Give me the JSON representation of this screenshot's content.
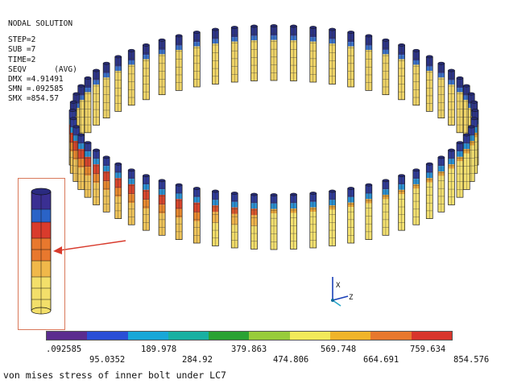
{
  "info": {
    "title": "NODAL SOLUTION",
    "step": "STEP=2",
    "sub": "SUB =7",
    "time": "TIME=2",
    "seqv": "SEQV      (AVG)",
    "dmx": "DMX =4.91491",
    "smn": "SMN =.092585",
    "smx": "SMX =854.57"
  },
  "legend": {
    "colors": [
      "#5b2c8f",
      "#2a4fd6",
      "#18a7d8",
      "#19b0a2",
      "#2aa233",
      "#98cc3b",
      "#f2ea5a",
      "#f0b42a",
      "#e8782e",
      "#d8352c"
    ],
    "values_row1": [
      ".092585",
      "189.978",
      "379.863",
      "569.748",
      "759.634"
    ],
    "values_row2": [
      "95.0352",
      "284.92",
      "474.806",
      "664.691",
      "854.576"
    ]
  },
  "axes": {
    "x_label": "X",
    "z_label": "Z"
  },
  "caption": "von mises stress of inner bolt under LC7"
}
